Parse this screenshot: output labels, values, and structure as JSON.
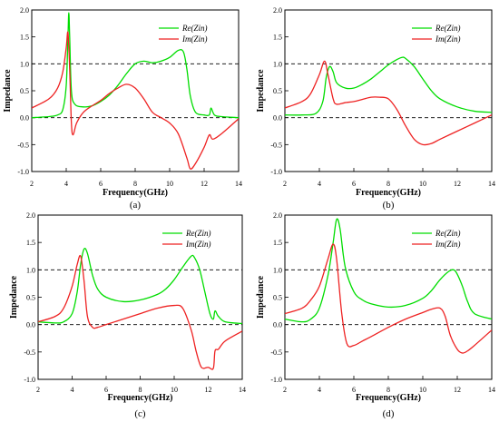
{
  "chart_data": [
    {
      "type": "line",
      "panel_label": "(a)",
      "xlabel": "Frequency(GHz)",
      "ylabel": "Impedance",
      "xlim": [
        2,
        14
      ],
      "ylim": [
        -1.0,
        2.0
      ],
      "xticks": [
        "2",
        "4",
        "6",
        "8",
        "10",
        "12",
        "14"
      ],
      "yticks": [
        "-1.0",
        "-0.5",
        "0.0",
        "0.5",
        "1.0",
        "1.5",
        "2.0"
      ],
      "reference_lines": [
        1.0,
        0.0
      ],
      "legend_position": "top-right",
      "series": [
        {
          "name": "Re(Zin)",
          "color": "#00dd00",
          "x": [
            2.0,
            3.0,
            3.5,
            3.8,
            4.0,
            4.1,
            4.15,
            4.2,
            4.3,
            4.5,
            5.0,
            5.5,
            6.0,
            6.5,
            7.0,
            7.5,
            8.0,
            8.5,
            9.0,
            9.5,
            10.0,
            10.5,
            10.8,
            11.0,
            11.2,
            11.5,
            12.0,
            12.3,
            12.4,
            12.6,
            13.0,
            14.0
          ],
          "y": [
            0.0,
            0.02,
            0.05,
            0.15,
            0.6,
            1.5,
            1.95,
            1.5,
            0.5,
            0.25,
            0.2,
            0.22,
            0.3,
            0.42,
            0.6,
            0.82,
            1.0,
            1.05,
            1.02,
            1.05,
            1.12,
            1.25,
            1.22,
            0.9,
            0.4,
            0.1,
            0.05,
            0.05,
            0.18,
            0.05,
            0.02,
            0.0
          ]
        },
        {
          "name": "Im(Zin)",
          "color": "#ee2222",
          "x": [
            2.0,
            3.0,
            3.5,
            3.8,
            4.0,
            4.1,
            4.2,
            4.3,
            4.4,
            4.6,
            5.0,
            5.5,
            6.0,
            6.5,
            7.0,
            7.5,
            8.0,
            8.5,
            9.0,
            9.5,
            10.0,
            10.5,
            11.0,
            11.2,
            11.5,
            12.0,
            12.3,
            12.5,
            13.0,
            14.0
          ],
          "y": [
            0.18,
            0.35,
            0.55,
            0.85,
            1.3,
            1.58,
            0.9,
            -0.1,
            -0.32,
            -0.1,
            0.1,
            0.22,
            0.32,
            0.45,
            0.55,
            0.62,
            0.55,
            0.35,
            0.1,
            0.0,
            -0.1,
            -0.3,
            -0.75,
            -0.95,
            -0.85,
            -0.55,
            -0.32,
            -0.4,
            -0.3,
            -0.02
          ]
        }
      ]
    },
    {
      "type": "line",
      "panel_label": "(b)",
      "xlabel": "Frequency(GHz)",
      "ylabel": "Impedance",
      "xlim": [
        2,
        14
      ],
      "ylim": [
        -1.0,
        2.0
      ],
      "xticks": [
        "2",
        "4",
        "6",
        "8",
        "10",
        "12",
        "14"
      ],
      "yticks": [
        "-1.0",
        "-0.5",
        "0.0",
        "0.5",
        "1.0",
        "1.5",
        "2.0"
      ],
      "reference_lines": [
        1.0,
        0.0
      ],
      "legend_position": "top-right",
      "series": [
        {
          "name": "Re(Zin)",
          "color": "#00dd00",
          "x": [
            2.0,
            3.0,
            3.8,
            4.2,
            4.4,
            4.6,
            4.8,
            5.0,
            5.5,
            6.0,
            6.5,
            7.0,
            7.5,
            8.0,
            8.5,
            8.8,
            9.0,
            9.5,
            10.0,
            10.5,
            11.0,
            12.0,
            13.0,
            14.0
          ],
          "y": [
            0.05,
            0.05,
            0.08,
            0.3,
            0.75,
            0.95,
            0.85,
            0.65,
            0.55,
            0.55,
            0.62,
            0.72,
            0.85,
            0.98,
            1.08,
            1.12,
            1.1,
            0.95,
            0.72,
            0.5,
            0.35,
            0.2,
            0.12,
            0.1
          ]
        },
        {
          "name": "Im(Zin)",
          "color": "#ee2222",
          "x": [
            2.0,
            3.0,
            3.5,
            4.0,
            4.3,
            4.5,
            4.8,
            5.0,
            5.5,
            6.0,
            6.5,
            7.0,
            7.5,
            8.0,
            8.5,
            9.0,
            9.5,
            10.0,
            10.5,
            11.0,
            12.0,
            13.0,
            14.0
          ],
          "y": [
            0.18,
            0.3,
            0.45,
            0.8,
            1.05,
            0.8,
            0.35,
            0.25,
            0.28,
            0.3,
            0.34,
            0.38,
            0.38,
            0.35,
            0.15,
            -0.15,
            -0.4,
            -0.5,
            -0.48,
            -0.4,
            -0.25,
            -0.1,
            0.05
          ]
        }
      ]
    },
    {
      "type": "line",
      "panel_label": "(c)",
      "xlabel": "Frequency(GHz)",
      "ylabel": "Impedance",
      "xlim": [
        2,
        14
      ],
      "ylim": [
        -1.0,
        2.0
      ],
      "xticks": [
        "2",
        "4",
        "6",
        "8",
        "10",
        "12",
        "14"
      ],
      "yticks": [
        "-1.0",
        "-0.5",
        "0.0",
        "0.5",
        "1.0",
        "1.5",
        "2.0"
      ],
      "reference_lines": [
        1.0,
        0.0
      ],
      "legend_position": "top-right",
      "series": [
        {
          "name": "Re(Zin)",
          "color": "#00dd00",
          "x": [
            2.0,
            3.0,
            3.5,
            4.0,
            4.3,
            4.5,
            4.7,
            4.9,
            5.2,
            5.5,
            6.0,
            7.0,
            8.0,
            9.0,
            9.5,
            10.0,
            10.5,
            11.0,
            11.2,
            11.5,
            11.8,
            12.1,
            12.3,
            12.4,
            12.6,
            13.0,
            14.0
          ],
          "y": [
            0.05,
            0.03,
            0.05,
            0.2,
            0.6,
            1.1,
            1.38,
            1.3,
            0.9,
            0.65,
            0.5,
            0.42,
            0.45,
            0.55,
            0.65,
            0.82,
            1.05,
            1.25,
            1.22,
            1.0,
            0.6,
            0.2,
            0.1,
            0.25,
            0.15,
            0.05,
            0.02
          ]
        },
        {
          "name": "Im(Zin)",
          "color": "#ee2222",
          "x": [
            2.0,
            3.0,
            3.5,
            4.0,
            4.3,
            4.5,
            4.7,
            4.9,
            5.2,
            5.5,
            6.0,
            7.0,
            8.0,
            9.0,
            10.0,
            10.5,
            11.0,
            11.3,
            11.6,
            12.0,
            12.3,
            12.4,
            12.6,
            13.0,
            14.0
          ],
          "y": [
            0.05,
            0.15,
            0.3,
            0.7,
            1.1,
            1.25,
            0.8,
            0.15,
            -0.05,
            -0.05,
            0.0,
            0.1,
            0.2,
            0.3,
            0.35,
            0.3,
            -0.1,
            -0.5,
            -0.78,
            -0.78,
            -0.8,
            -0.48,
            -0.45,
            -0.3,
            -0.12
          ]
        }
      ]
    },
    {
      "type": "line",
      "panel_label": "(d)",
      "xlabel": "Frequency(GHz)",
      "ylabel": "Impedance",
      "xlim": [
        2,
        14
      ],
      "ylim": [
        -1.0,
        2.0
      ],
      "xticks": [
        "2",
        "4",
        "6",
        "8",
        "10",
        "12",
        "14"
      ],
      "yticks": [
        "-1.0",
        "-0.5",
        "0.0",
        "0.5",
        "1.0",
        "1.5",
        "2.0"
      ],
      "reference_lines": [
        1.0,
        0.0
      ],
      "legend_position": "top-right",
      "series": [
        {
          "name": "Re(Zin)",
          "color": "#00dd00",
          "x": [
            2.0,
            3.0,
            3.5,
            4.0,
            4.5,
            4.8,
            5.0,
            5.2,
            5.5,
            6.0,
            6.5,
            7.0,
            8.0,
            9.0,
            10.0,
            10.5,
            11.0,
            11.5,
            11.8,
            12.0,
            12.3,
            12.6,
            13.0,
            14.0
          ],
          "y": [
            0.1,
            0.05,
            0.1,
            0.3,
            0.9,
            1.5,
            1.92,
            1.75,
            1.05,
            0.6,
            0.45,
            0.38,
            0.32,
            0.35,
            0.48,
            0.62,
            0.82,
            0.97,
            1.0,
            0.92,
            0.7,
            0.42,
            0.2,
            0.1
          ]
        },
        {
          "name": "Im(Zin)",
          "color": "#ee2222",
          "x": [
            2.0,
            3.0,
            3.5,
            4.0,
            4.5,
            4.8,
            5.0,
            5.3,
            5.6,
            6.0,
            6.5,
            7.0,
            8.0,
            9.0,
            10.0,
            10.5,
            11.0,
            11.3,
            11.6,
            12.0,
            12.3,
            12.6,
            13.0,
            14.0
          ],
          "y": [
            0.2,
            0.3,
            0.45,
            0.7,
            1.2,
            1.47,
            1.2,
            0.2,
            -0.35,
            -0.38,
            -0.3,
            -0.22,
            -0.05,
            0.1,
            0.22,
            0.28,
            0.3,
            0.15,
            -0.2,
            -0.45,
            -0.52,
            -0.48,
            -0.38,
            -0.1
          ]
        }
      ]
    }
  ]
}
